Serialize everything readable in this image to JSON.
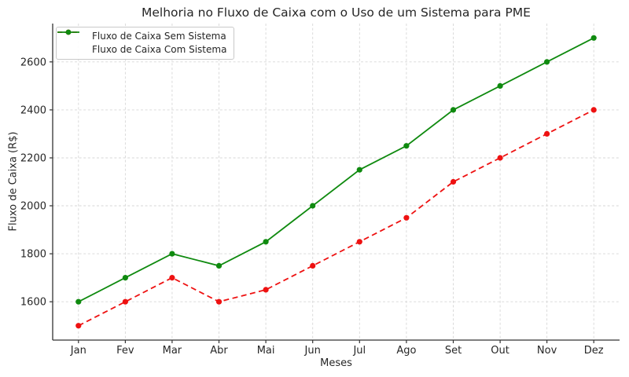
{
  "figure": {
    "background": "#ffffff"
  },
  "chart_data": {
    "type": "line",
    "title": "Melhoria no Fluxo de Caixa com o Uso de um Sistema para PME",
    "xlabel": "Meses",
    "ylabel": "Fluxo de Caixa (R$)",
    "categories": [
      "Jan",
      "Fev",
      "Mar",
      "Abr",
      "Mai",
      "Jun",
      "Jul",
      "Ago",
      "Set",
      "Out",
      "Nov",
      "Dez"
    ],
    "series": [
      {
        "name": "Fluxo de Caixa Sem Sistema",
        "values": [
          1500,
          1600,
          1700,
          1600,
          1650,
          1750,
          1850,
          1950,
          2100,
          2200,
          2300,
          2400
        ],
        "color": "#ee1111",
        "line_style": "dashed",
        "marker": "circle"
      },
      {
        "name": "Fluxo de Caixa Com Sistema",
        "values": [
          1600,
          1700,
          1800,
          1750,
          1850,
          2000,
          2150,
          2250,
          2400,
          2500,
          2600,
          2700
        ],
        "color": "#0f8a0f",
        "line_style": "solid",
        "marker": "circle"
      }
    ],
    "y_ticks": [
      1600,
      1800,
      2000,
      2200,
      2400,
      2600
    ],
    "ylim": [
      1440,
      2760
    ],
    "xlim_index": [
      -0.55,
      11.55
    ],
    "grid": true,
    "grid_color": "#d7d7d7",
    "grid_style": "dashed",
    "axis_color": "#333333",
    "text_color": "#262626",
    "legend_position": "upper-left"
  }
}
